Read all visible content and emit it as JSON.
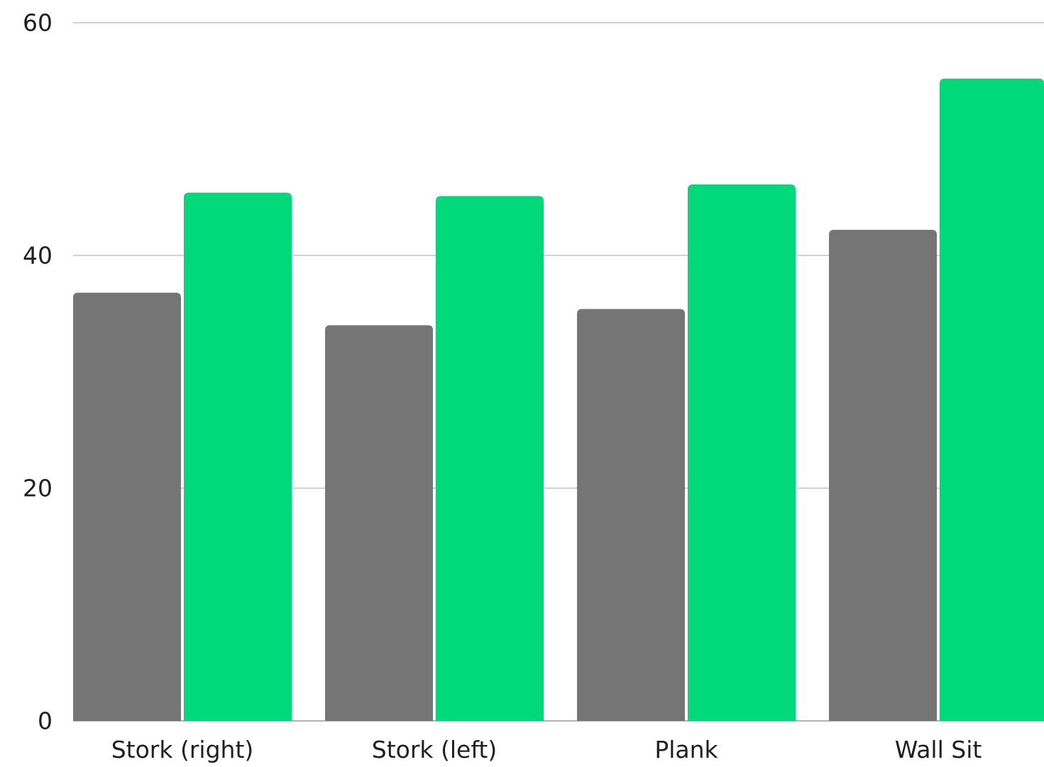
{
  "chart_data": {
    "type": "bar",
    "title": "",
    "xlabel": "",
    "ylabel": "",
    "categories": [
      "Stork (right)",
      "Stork (left)",
      "Plank",
      "Wall Sit"
    ],
    "series": [
      {
        "color": "#757575",
        "values": [
          36.8,
          34.0,
          35.4,
          42.2
        ]
      },
      {
        "color": "#00d97a",
        "values": [
          45.4,
          45.1,
          46.1,
          55.2
        ]
      }
    ],
    "ylim": [
      0,
      60
    ],
    "yticks": [
      0,
      20,
      40,
      60
    ],
    "grid": true,
    "legend": "none",
    "colors": {
      "grid": "#c4c4c4",
      "axis_text": "#1f1f1f"
    }
  }
}
